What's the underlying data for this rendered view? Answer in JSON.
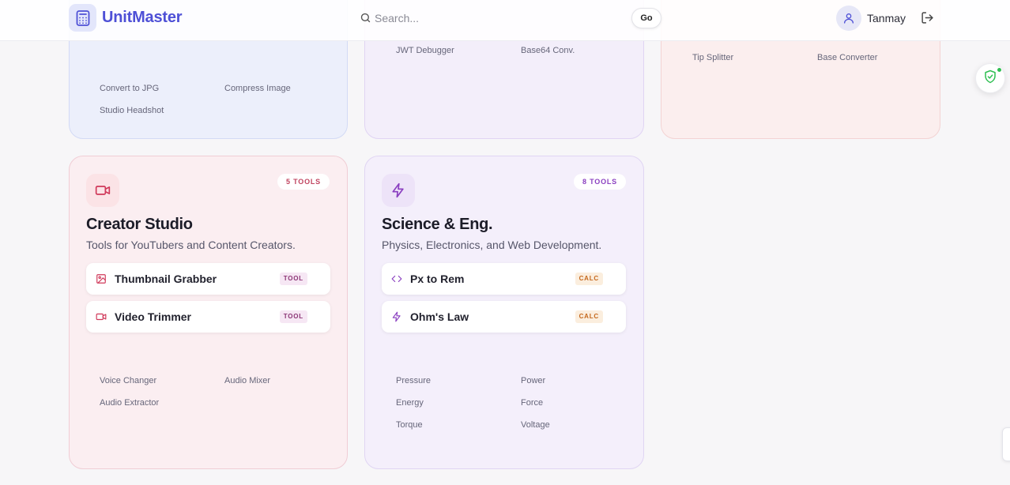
{
  "app": {
    "name": "UnitMaster"
  },
  "search": {
    "placeholder": "Search...",
    "go_label": "Go"
  },
  "user": {
    "name": "Tanmay"
  },
  "top_cards": {
    "images": {
      "links": [
        "Convert to JPG",
        "Compress Image",
        "Studio Headshot"
      ]
    },
    "developer": {
      "links": [
        "JWT Debugger",
        "Base64 Conv."
      ]
    },
    "finance": {
      "links": [
        "Tip Splitter",
        "Base Converter"
      ]
    }
  },
  "creator": {
    "badge": "5 TOOLS",
    "title": "Creator Studio",
    "description": "Tools for YouTubers and Content Creators.",
    "tools": [
      {
        "name": "Thumbnail Grabber",
        "tag": "TOOL",
        "icon": "image-icon"
      },
      {
        "name": "Video Trimmer",
        "tag": "TOOL",
        "icon": "video-icon"
      }
    ],
    "links": [
      "Voice Changer",
      "Audio Mixer",
      "Audio Extractor"
    ]
  },
  "science": {
    "badge": "8 TOOLS",
    "title": "Science & Eng.",
    "description": "Physics, Electronics, and Web Development.",
    "tools": [
      {
        "name": "Px to Rem",
        "tag": "CALC",
        "icon": "code-icon"
      },
      {
        "name": "Ohm's Law",
        "tag": "CALC",
        "icon": "lightning-icon"
      }
    ],
    "links": [
      "Pressure",
      "Power",
      "Energy",
      "Force",
      "Torque",
      "Voltage"
    ]
  },
  "colors": {
    "brand": "#4e50d6",
    "creator_accent": "#d0395a",
    "science_accent": "#8a3fc0",
    "calc_tag": "#c5681d",
    "status_dot": "#2fbf52"
  }
}
